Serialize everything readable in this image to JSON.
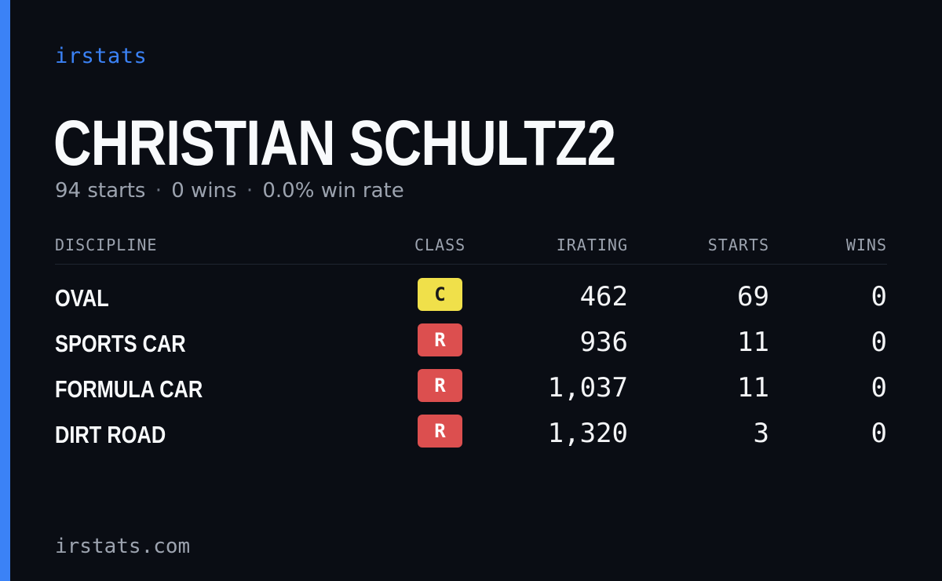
{
  "brand": "irstats",
  "driver": {
    "name": "CHRISTIAN SCHULTZ2",
    "starts_text": "94 starts",
    "wins_text": "0 wins",
    "win_rate_text": "0.0% win rate",
    "separator": "·"
  },
  "table": {
    "headers": {
      "discipline": "DISCIPLINE",
      "class": "CLASS",
      "irating": "IRATING",
      "starts": "STARTS",
      "wins": "WINS"
    },
    "rows": [
      {
        "discipline": "OVAL",
        "class": "C",
        "class_bg": "#f0e04a",
        "class_fg": "#1a1a1a",
        "irating": "462",
        "starts": "69",
        "wins": "0"
      },
      {
        "discipline": "SPORTS CAR",
        "class": "R",
        "class_bg": "#dc4f4f",
        "class_fg": "#ffffff",
        "irating": "936",
        "starts": "11",
        "wins": "0"
      },
      {
        "discipline": "FORMULA CAR",
        "class": "R",
        "class_bg": "#dc4f4f",
        "class_fg": "#ffffff",
        "irating": "1,037",
        "starts": "11",
        "wins": "0"
      },
      {
        "discipline": "DIRT ROAD",
        "class": "R",
        "class_bg": "#dc4f4f",
        "class_fg": "#ffffff",
        "irating": "1,320",
        "starts": "3",
        "wins": "0"
      }
    ]
  },
  "footer": "irstats.com",
  "colors": {
    "accent": "#3b82f6",
    "background": "#0a0d14",
    "muted_text": "#9ca3af"
  }
}
